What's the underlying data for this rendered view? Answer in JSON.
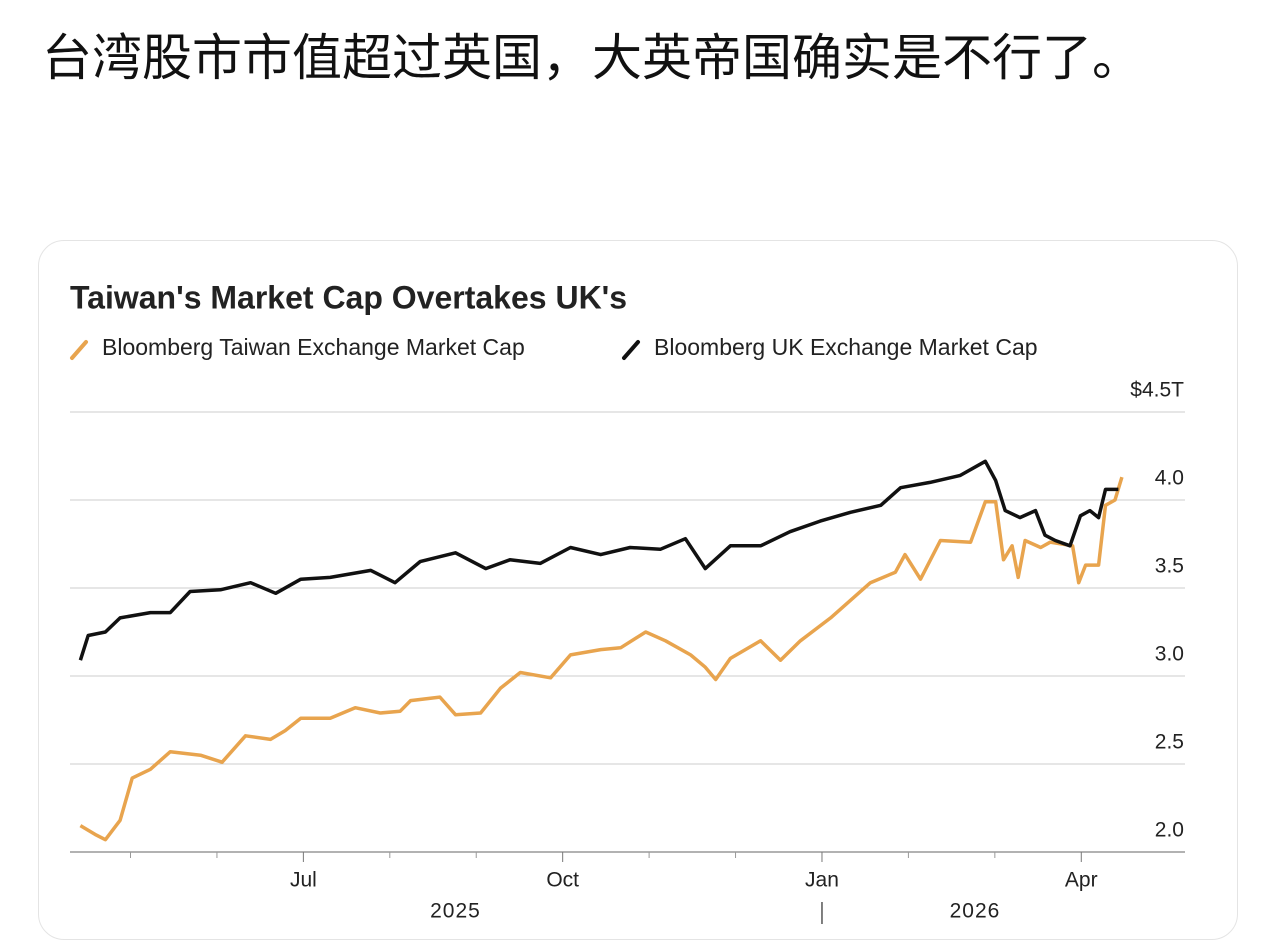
{
  "post": {
    "text": "台湾股市市值超过英国，大英帝国确实是不行了。"
  },
  "chart_data": {
    "type": "line",
    "title": "Taiwan's Market Cap Overtakes UK's",
    "series": [
      {
        "name": "Bloomberg Taiwan Exchange Market Cap",
        "color": "#e8a44e",
        "x": [
          4.42,
          4.59,
          4.71,
          4.88,
          5.02,
          5.23,
          5.46,
          5.81,
          6.06,
          6.33,
          6.62,
          6.79,
          6.97,
          7.31,
          7.6,
          7.89,
          8.12,
          8.24,
          8.58,
          8.76,
          9.05,
          9.28,
          9.51,
          9.86,
          10.09,
          10.44,
          10.67,
          10.96,
          11.19,
          11.48,
          11.65,
          11.77,
          11.94,
          12.29,
          12.52,
          12.75,
          13.1,
          13.33,
          13.56,
          13.85,
          13.96,
          14.14,
          14.37,
          14.72,
          14.89,
          15.01,
          15.1,
          15.2,
          15.27,
          15.35,
          15.53,
          15.64,
          15.9,
          15.97,
          16.05,
          16.2,
          16.28,
          16.39,
          16.47
        ],
        "values": [
          2.15,
          2.1,
          2.07,
          2.18,
          2.42,
          2.47,
          2.57,
          2.55,
          2.51,
          2.66,
          2.64,
          2.69,
          2.76,
          2.76,
          2.82,
          2.79,
          2.8,
          2.86,
          2.88,
          2.78,
          2.79,
          2.93,
          3.02,
          2.99,
          3.12,
          3.15,
          3.16,
          3.25,
          3.2,
          3.12,
          3.05,
          2.98,
          3.1,
          3.2,
          3.09,
          3.2,
          3.33,
          3.43,
          3.53,
          3.59,
          3.69,
          3.55,
          3.77,
          3.76,
          3.99,
          3.99,
          3.66,
          3.74,
          3.56,
          3.77,
          3.73,
          3.76,
          3.74,
          3.53,
          3.63,
          3.63,
          3.97,
          4.0,
          4.13
        ]
      },
      {
        "name": "Bloomberg UK Exchange Market Cap",
        "color": "#111111",
        "x": [
          4.42,
          4.51,
          4.71,
          4.88,
          5.23,
          5.46,
          5.69,
          6.04,
          6.39,
          6.68,
          6.97,
          7.31,
          7.78,
          8.06,
          8.35,
          8.76,
          9.11,
          9.39,
          9.74,
          10.09,
          10.44,
          10.78,
          11.13,
          11.42,
          11.65,
          11.94,
          12.29,
          12.63,
          12.98,
          13.33,
          13.68,
          13.91,
          14.25,
          14.6,
          14.89,
          15.01,
          15.12,
          15.29,
          15.47,
          15.58,
          15.7,
          15.87,
          15.99,
          16.1,
          16.2,
          16.28,
          16.43
        ],
        "values": [
          3.09,
          3.23,
          3.25,
          3.33,
          3.36,
          3.36,
          3.48,
          3.49,
          3.53,
          3.47,
          3.55,
          3.56,
          3.6,
          3.53,
          3.65,
          3.7,
          3.61,
          3.66,
          3.64,
          3.73,
          3.69,
          3.73,
          3.72,
          3.78,
          3.61,
          3.74,
          3.74,
          3.82,
          3.88,
          3.93,
          3.97,
          4.07,
          4.1,
          4.14,
          4.22,
          4.11,
          3.94,
          3.9,
          3.94,
          3.8,
          3.77,
          3.74,
          3.91,
          3.94,
          3.9,
          4.06,
          4.06
        ]
      }
    ],
    "xlim": [
      4.3,
      17.2
    ],
    "xticks": [
      {
        "value": 7,
        "label": "Jul"
      },
      {
        "value": 10,
        "label": "Oct"
      },
      {
        "value": 13,
        "label": "Jan"
      },
      {
        "value": 16,
        "label": "Apr"
      }
    ],
    "xminor": [
      5,
      6,
      8,
      9,
      11,
      12,
      14,
      15
    ],
    "annotations": [
      {
        "value": 8.76,
        "label": "2025"
      },
      {
        "value": 14.77,
        "label": "2026"
      }
    ],
    "ylim": [
      2,
      4.5
    ],
    "yticks": [
      {
        "value": 2,
        "label": "2.0"
      },
      {
        "value": 2.5,
        "label": "2.5"
      },
      {
        "value": 3,
        "label": "3.0"
      },
      {
        "value": 3.5,
        "label": "3.5"
      },
      {
        "value": 4,
        "label": "4.0"
      },
      {
        "value": 4.5,
        "label": "$4.5T"
      }
    ],
    "grid": true
  }
}
